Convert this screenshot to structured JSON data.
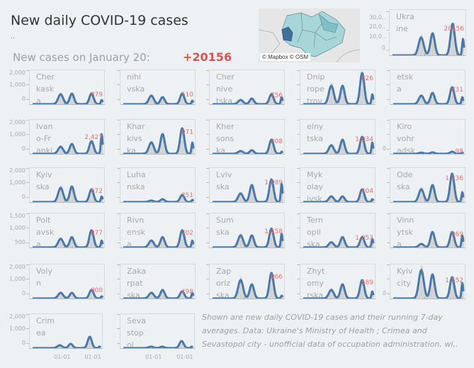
{
  "header": {
    "title": "New daily COVID-19 cases",
    "dots": "..",
    "subtitle": "New cases on January 20:",
    "total": "+20156"
  },
  "map": {
    "credit": "© Mapbox © OSM",
    "partial_label": "lono"
  },
  "colors": {
    "bars": "#c8c8c8",
    "line": "#4a78a8",
    "value": "#e07070",
    "total": "#d9534f"
  },
  "note": [
    "Shown are new daily COVID-19 cases and their running 7-day",
    "averages. Data: Ukraine's Ministry of Health ; Crimea and",
    "Sevastopol city - unofficial data of occupation administration, wi.."
  ],
  "chart_data": {
    "type": "bar+line small multiples",
    "x_tick_labels": [
      "01-01",
      "01-01"
    ],
    "ukraine": {
      "name": "Ukra\nine",
      "yticks": [
        "30,0..",
        "20,0..",
        "10,0..",
        "0"
      ],
      "ylim": [
        0,
        32000
      ],
      "peaks": [
        13000,
        16000,
        23000,
        12000
      ],
      "last_value": "20156"
    },
    "regions": [
      {
        "name": "Cher\nkask\na",
        "yticks": [
          "2,000",
          "1,000",
          "0"
        ],
        "ylim": [
          0,
          2300
        ],
        "peaks": [
          700,
          750,
          750,
          300
        ],
        "last_value": "879"
      },
      {
        "name": "nihi\nvska",
        "ylim": [
          0,
          2300
        ],
        "peaks": [
          600,
          500,
          750,
          250
        ],
        "last_value": "510"
      },
      {
        "name": "Cher\nnive\ntska",
        "ylim": [
          0,
          2300
        ],
        "peaks": [
          300,
          400,
          700,
          500
        ],
        "last_value": "756"
      },
      {
        "name": "Dnip\nrope\ntrov",
        "ylim": [
          0,
          2300
        ],
        "peaks": [
          1300,
          1300,
          2200,
          700
        ],
        "last_value": "826"
      },
      {
        "name": "etsk\na",
        "ylim": [
          0,
          2300
        ],
        "peaks": [
          600,
          800,
          1200,
          500
        ],
        "last_value": "831"
      },
      {
        "name": "Ivan\no-Fr\nanki",
        "yticks": [
          "2,000",
          "1,000",
          "0"
        ],
        "ylim": [
          0,
          2300
        ],
        "peaks": [
          500,
          700,
          900,
          1400
        ],
        "last_value": "2,427"
      },
      {
        "name": "Khar\nkivs\nka",
        "ylim": [
          0,
          2300
        ],
        "peaks": [
          800,
          1400,
          1800,
          800
        ],
        "last_value": "971"
      },
      {
        "name": "Kher\nsons\nka",
        "ylim": [
          0,
          2300
        ],
        "peaks": [
          200,
          250,
          1000,
          150
        ],
        "last_value": "308"
      },
      {
        "name": "elny\ntska",
        "ylim": [
          0,
          2300
        ],
        "peaks": [
          600,
          1000,
          1200,
          800
        ],
        "last_value": "1,034"
      },
      {
        "name": "Kiro\nvohr\nadsk",
        "yticks": [
          "",
          "",
          "0"
        ],
        "ylim": [
          0,
          2300
        ],
        "peaks": [
          80,
          100,
          150,
          80
        ],
        "last_value": "98"
      },
      {
        "name": "Kyiv\n ska",
        "yticks": [
          "2,000",
          "1,000",
          "0"
        ],
        "ylim": [
          0,
          2300
        ],
        "peaks": [
          1000,
          1100,
          900,
          400
        ],
        "last_value": "672"
      },
      {
        "name": "Luha\nnska",
        "ylim": [
          0,
          2300
        ],
        "peaks": [
          100,
          200,
          500,
          150
        ],
        "last_value": "251"
      },
      {
        "name": "Lviv\n ska",
        "ylim": [
          0,
          2300
        ],
        "peaks": [
          600,
          1200,
          1600,
          1300
        ],
        "last_value": "1,989"
      },
      {
        "name": "Myk\nolay\nivsk",
        "ylim": [
          0,
          2300
        ],
        "peaks": [
          400,
          400,
          900,
          200
        ],
        "last_value": "404"
      },
      {
        "name": "Ode\n ska",
        "ylim": [
          0,
          2300
        ],
        "peaks": [
          900,
          1200,
          2000,
          700
        ],
        "last_value": "1,236"
      },
      {
        "name": "Polt\navsk\n  a",
        "yticks": [
          "1,500",
          "1,000",
          "500"
        ],
        "ylim": [
          0,
          1900
        ],
        "peaks": [
          500,
          600,
          1000,
          400
        ],
        "last_value": "977"
      },
      {
        "name": "Rivn\nensk\n  a",
        "ylim": [
          0,
          1900
        ],
        "peaks": [
          400,
          600,
          1000,
          400
        ],
        "last_value": "702"
      },
      {
        "name": "Sum\n ska",
        "ylim": [
          0,
          1900
        ],
        "peaks": [
          700,
          700,
          1100,
          800
        ],
        "last_value": "1,158"
      },
      {
        "name": "Tern\nopil\nska",
        "ylim": [
          0,
          1900
        ],
        "peaks": [
          300,
          600,
          600,
          500
        ],
        "last_value": "1,053"
      },
      {
        "name": "Vinn\nytsk\n  a",
        "ylim": [
          0,
          1900
        ],
        "peaks": [
          200,
          900,
          900,
          700
        ],
        "last_value": "969"
      },
      {
        "name": "Voly\n  n",
        "yticks": [
          "2,000",
          "1,000",
          "0"
        ],
        "ylim": [
          0,
          2300
        ],
        "peaks": [
          400,
          400,
          600,
          150
        ],
        "last_value": "800"
      },
      {
        "name": "Zaka\nrpat\n ska",
        "ylim": [
          0,
          2300
        ],
        "peaks": [
          400,
          600,
          500,
          400
        ],
        "last_value": "498"
      },
      {
        "name": "Zap\noriz\n ska",
        "ylim": [
          0,
          2300
        ],
        "peaks": [
          1300,
          1000,
          1800,
          200
        ],
        "last_value": "966"
      },
      {
        "name": "Zhyt\nomy\nrska",
        "ylim": [
          0,
          2300
        ],
        "peaks": [
          600,
          1000,
          1300,
          500
        ],
        "last_value": "589"
      },
      {
        "name": "Kyiv\n city",
        "yticks": [
          "",
          "",
          "0"
        ],
        "ylim": [
          0,
          2300
        ],
        "peaks": [
          2000,
          1700,
          1500,
          1100
        ],
        "last_value": "1,552"
      },
      {
        "name": "Crim\n ea",
        "yticks": [
          "2,000",
          "1,000",
          "0"
        ],
        "ylim": [
          0,
          2300
        ],
        "peaks": [
          200,
          300,
          800,
          100
        ],
        "last_value": "",
        "x_labels": true
      },
      {
        "name": "Seva\nstop\n  ol",
        "ylim": [
          0,
          2300
        ],
        "peaks": [
          100,
          100,
          500,
          100
        ],
        "last_value": "",
        "x_labels": true
      }
    ]
  }
}
